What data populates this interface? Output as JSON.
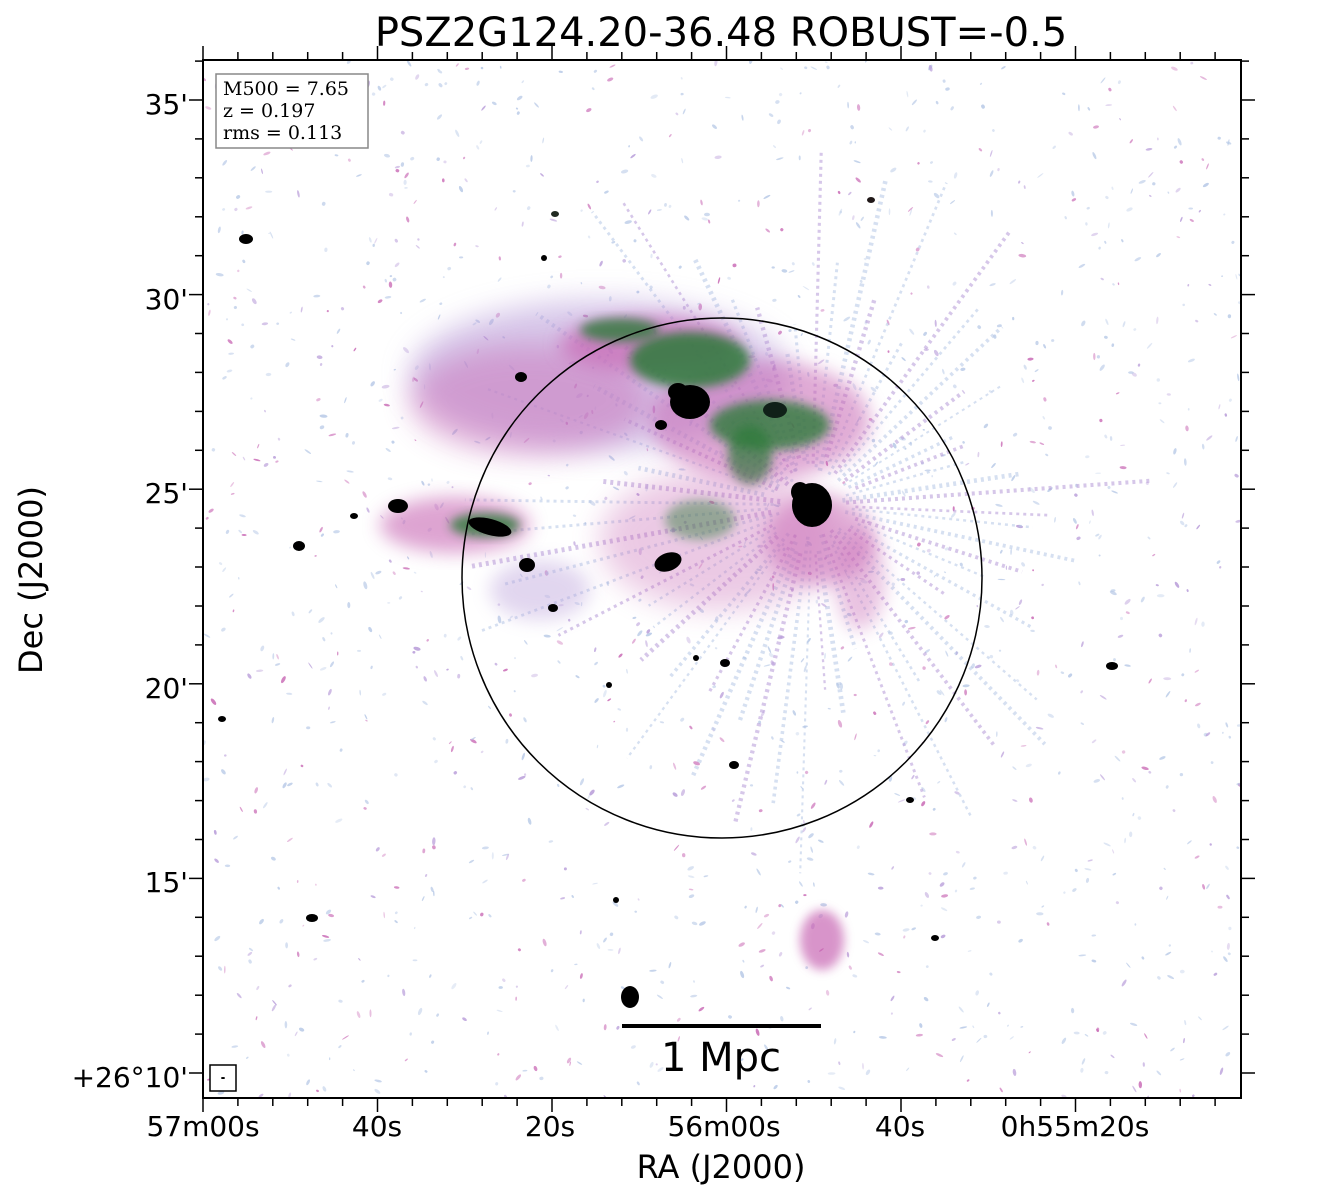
{
  "title": "PSZ2G124.20-36.48 ROBUST=-0.5",
  "xlabel": "RA (J2000)",
  "ylabel": "Dec (J2000)",
  "xticks": [
    "57m00s",
    "40s",
    "20s",
    "56m00s",
    "40s",
    "0h55m20s"
  ],
  "yticks": [
    "35'",
    "30'",
    "25'",
    "20'",
    "15'",
    "+26°10'"
  ],
  "info": {
    "m500": "M500 = 7.65",
    "z": "z = 0.197",
    "rms": "rms = 0.113"
  },
  "scale_bar_label": "1 Mpc",
  "colors": {
    "faint": "#b6c8e6",
    "lavender": "#b69ad8",
    "magenta": "#c868b4",
    "green": "#2e7a3a",
    "dark_green": "#1d4a24",
    "black": "#000000"
  }
}
